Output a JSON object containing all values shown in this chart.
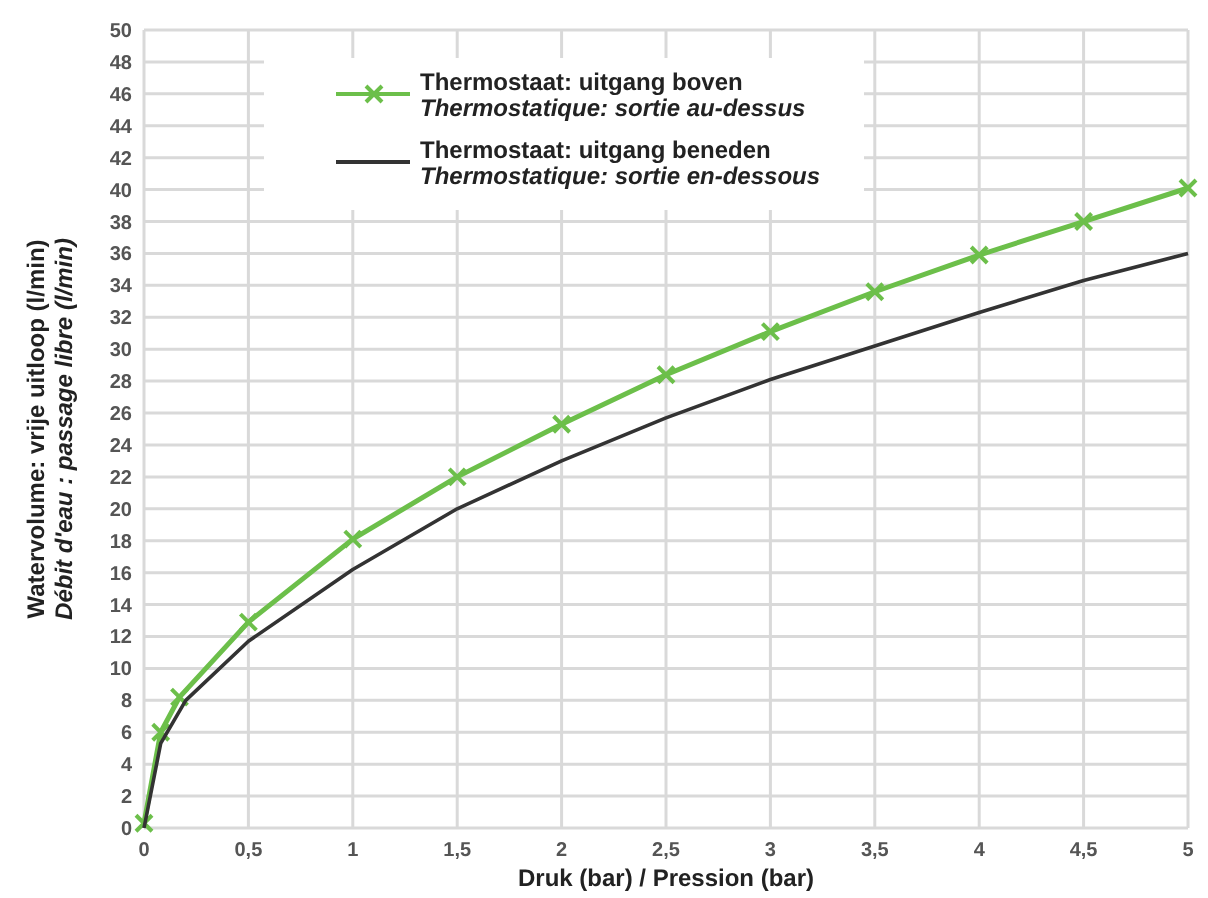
{
  "chart_data": {
    "type": "line",
    "xlabel": "Druk (bar) / Pression (bar)",
    "ylabel": "Watervolume: vrije uitloop (l/min)\nDébit d'eau : passage libre (l/min)",
    "xlim": [
      0,
      5
    ],
    "xticks": [
      0,
      {
        "value": 0.5,
        "label": "0,5"
      },
      1,
      {
        "value": 1.5,
        "label": "1,5"
      },
      2,
      {
        "value": 2.5,
        "label": "2,5"
      },
      3,
      {
        "value": 3.5,
        "label": "3,5"
      },
      4,
      {
        "value": 4.5,
        "label": "4,5"
      },
      5
    ],
    "ylim": [
      0,
      50
    ],
    "yticks": [
      0,
      2,
      4,
      6,
      8,
      10,
      12,
      14,
      16,
      18,
      20,
      22,
      24,
      26,
      28,
      30,
      32,
      34,
      36,
      38,
      40,
      42,
      44,
      46,
      48,
      50
    ],
    "grid": true,
    "legend": "top",
    "line_style": "solid",
    "series": [
      {
        "name": "Thermostaat: uitgang boven\nThermostatique: sortie au-dessus",
        "color": "#6cbf4a",
        "marker": "cross",
        "x": [
          0,
          0.08,
          0.17,
          0.5,
          1,
          1.5,
          2,
          2.5,
          3,
          3.5,
          4,
          4.5,
          5
        ],
        "values": [
          0.3,
          6,
          8.2,
          12.9,
          18.1,
          22,
          25.3,
          28.4,
          31.1,
          33.6,
          35.9,
          38,
          40.1
        ]
      },
      {
        "name": "Thermostaat: uitgang beneden\nThermostatique: sortie en-dessous",
        "color": "#333333",
        "marker": "none",
        "x": [
          0,
          0.08,
          0.2,
          0.5,
          1,
          1.5,
          2,
          2.5,
          3,
          3.5,
          4,
          4.5,
          5
        ],
        "values": [
          0,
          5.3,
          8,
          11.7,
          16.2,
          20,
          23,
          25.7,
          28.1,
          30.2,
          32.3,
          34.3,
          36
        ]
      }
    ]
  }
}
